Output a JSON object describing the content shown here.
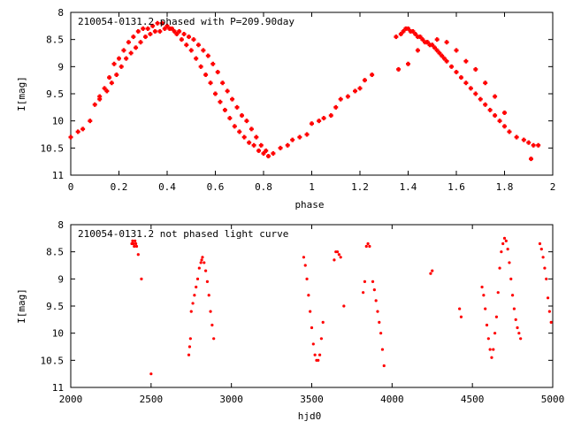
{
  "colors": {
    "marker": "#ff0000",
    "frame": "#000000",
    "background": "#ffffff"
  },
  "chart_data": [
    {
      "type": "scatter",
      "title": "210054-0131.2 phased with P=209.90day",
      "xlabel": "phase",
      "ylabel": "I[mag]",
      "xlim": [
        0,
        2
      ],
      "ylim": [
        11,
        8
      ],
      "y_inverted": true,
      "grid": false,
      "xticks": [
        0,
        0.2,
        0.4,
        0.6,
        0.8,
        1,
        1.2,
        1.4,
        1.6,
        1.8,
        2
      ],
      "xtick_labels": [
        "0",
        "0.2",
        "0.4",
        "0.6",
        "0.8",
        "1",
        "1.2",
        "1.4",
        "1.6",
        "1.8",
        "2"
      ],
      "yticks": [
        8,
        8.5,
        9,
        9.5,
        10,
        10.5,
        11
      ],
      "ytick_labels": [
        "8",
        "8.5",
        "9",
        "9.5",
        "10",
        "10.5",
        "11"
      ],
      "marker": "plus",
      "x": [
        0.0,
        0.03,
        0.05,
        0.08,
        0.1,
        0.12,
        0.14,
        0.16,
        0.18,
        0.2,
        0.22,
        0.24,
        0.26,
        0.28,
        0.3,
        0.32,
        0.34,
        0.36,
        0.38,
        0.4,
        0.42,
        0.44,
        0.46,
        0.48,
        0.5,
        0.52,
        0.54,
        0.56,
        0.58,
        0.6,
        0.62,
        0.64,
        0.66,
        0.68,
        0.7,
        0.72,
        0.74,
        0.76,
        0.78,
        0.8,
        0.82,
        0.84,
        0.87,
        0.9,
        0.92,
        0.95,
        0.98,
        1.0,
        1.03,
        1.05,
        1.08,
        1.1,
        1.12,
        1.15,
        1.18,
        1.2,
        1.22,
        1.25,
        0.12,
        0.15,
        0.17,
        0.19,
        0.21,
        0.23,
        0.25,
        0.27,
        0.29,
        0.31,
        0.33,
        0.35,
        0.37,
        0.39,
        0.41,
        0.43,
        0.45,
        0.47,
        0.49,
        0.51,
        0.53,
        0.55,
        0.57,
        0.59,
        0.61,
        0.63,
        0.65,
        0.67,
        0.69,
        0.71,
        0.73,
        0.75,
        0.77,
        0.79,
        0.81,
        1.35,
        1.37,
        1.38,
        1.39,
        1.4,
        1.41,
        1.42,
        1.43,
        1.44,
        1.45,
        1.46,
        1.47,
        1.48,
        1.49,
        1.5,
        1.51,
        1.52,
        1.53,
        1.54,
        1.55,
        1.56,
        1.58,
        1.6,
        1.62,
        1.64,
        1.66,
        1.68,
        1.7,
        1.72,
        1.74,
        1.76,
        1.78,
        1.8,
        1.82,
        1.85,
        1.88,
        1.9,
        1.92,
        1.94,
        1.36,
        1.4,
        1.44,
        1.48,
        1.52,
        1.56,
        1.6,
        1.64,
        1.68,
        1.72,
        1.76,
        1.8,
        1.91
      ],
      "y": [
        10.3,
        10.2,
        10.15,
        10.0,
        9.7,
        9.55,
        9.4,
        9.2,
        8.95,
        8.85,
        8.7,
        8.55,
        8.45,
        8.35,
        8.3,
        8.3,
        8.25,
        8.2,
        8.2,
        8.25,
        8.3,
        8.4,
        8.5,
        8.6,
        8.7,
        8.85,
        9.0,
        9.15,
        9.3,
        9.5,
        9.65,
        9.8,
        9.95,
        10.1,
        10.2,
        10.3,
        10.4,
        10.45,
        10.55,
        10.6,
        10.65,
        10.6,
        10.5,
        10.45,
        10.35,
        10.3,
        10.25,
        10.05,
        10.0,
        9.95,
        9.9,
        9.75,
        9.6,
        9.55,
        9.45,
        9.4,
        9.25,
        9.15,
        9.6,
        9.45,
        9.3,
        9.15,
        9.0,
        8.85,
        8.75,
        8.65,
        8.55,
        8.45,
        8.4,
        8.35,
        8.35,
        8.3,
        8.3,
        8.35,
        8.35,
        8.4,
        8.45,
        8.5,
        8.6,
        8.7,
        8.8,
        8.95,
        9.1,
        9.3,
        9.45,
        9.6,
        9.75,
        9.9,
        10.0,
        10.15,
        10.3,
        10.45,
        10.55,
        8.45,
        8.4,
        8.35,
        8.3,
        8.3,
        8.35,
        8.35,
        8.4,
        8.45,
        8.45,
        8.5,
        8.55,
        8.55,
        8.6,
        8.6,
        8.65,
        8.7,
        8.75,
        8.8,
        8.85,
        8.9,
        9.0,
        9.1,
        9.2,
        9.3,
        9.4,
        9.5,
        9.6,
        9.7,
        9.8,
        9.9,
        10.0,
        10.1,
        10.2,
        10.3,
        10.35,
        10.4,
        10.45,
        10.45,
        9.05,
        8.95,
        8.7,
        8.55,
        8.5,
        8.55,
        8.7,
        8.9,
        9.05,
        9.3,
        9.55,
        9.85,
        10.7
      ]
    },
    {
      "type": "scatter",
      "title": "210054-0131.2 not phased light curve",
      "xlabel": "hjd0",
      "ylabel": "I[mag]",
      "xlim": [
        2000,
        5000
      ],
      "ylim": [
        11,
        8
      ],
      "y_inverted": true,
      "grid": false,
      "xticks": [
        2000,
        2500,
        3000,
        3500,
        4000,
        4500,
        5000
      ],
      "xtick_labels": [
        "2000",
        "2500",
        "3000",
        "3500",
        "4000",
        "4500",
        "5000"
      ],
      "yticks": [
        8,
        8.5,
        9,
        9.5,
        10,
        10.5,
        11
      ],
      "ytick_labels": [
        "8",
        "8.5",
        "9",
        "9.5",
        "10",
        "10.5",
        "11"
      ],
      "marker": "dot",
      "x": [
        2380,
        2385,
        2390,
        2395,
        2400,
        2405,
        2410,
        2420,
        2440,
        2500,
        2735,
        2740,
        2745,
        2750,
        2760,
        2770,
        2780,
        2790,
        2800,
        2810,
        2815,
        2820,
        2830,
        2840,
        2850,
        2860,
        2870,
        2880,
        2890,
        3450,
        3460,
        3470,
        3480,
        3490,
        3500,
        3510,
        3520,
        3530,
        3540,
        3550,
        3560,
        3570,
        3640,
        3650,
        3660,
        3670,
        3680,
        3700,
        3820,
        3830,
        3840,
        3850,
        3860,
        3880,
        3890,
        3900,
        3910,
        3920,
        3930,
        3940,
        3950,
        4240,
        4250,
        4420,
        4430,
        4560,
        4570,
        4580,
        4590,
        4600,
        4610,
        4620,
        4630,
        4640,
        4650,
        4660,
        4670,
        4680,
        4690,
        4700,
        4710,
        4720,
        4730,
        4740,
        4750,
        4760,
        4770,
        4780,
        4790,
        4800,
        4920,
        4930,
        4940,
        4950,
        4960,
        4970,
        4980,
        4990
      ],
      "y": [
        8.35,
        8.3,
        8.35,
        8.4,
        8.3,
        8.35,
        8.4,
        8.55,
        9.0,
        10.75,
        10.4,
        10.25,
        10.1,
        9.6,
        9.45,
        9.3,
        9.15,
        9.0,
        8.8,
        8.7,
        8.65,
        8.6,
        8.7,
        8.85,
        9.05,
        9.3,
        9.6,
        9.85,
        10.1,
        8.6,
        8.75,
        9.0,
        9.3,
        9.6,
        9.9,
        10.2,
        10.4,
        10.5,
        10.5,
        10.4,
        10.1,
        9.8,
        8.65,
        8.5,
        8.5,
        8.55,
        8.6,
        9.5,
        9.25,
        9.05,
        8.4,
        8.35,
        8.4,
        9.05,
        9.2,
        9.4,
        9.6,
        9.8,
        10.0,
        10.3,
        10.6,
        8.9,
        8.85,
        9.55,
        9.7,
        9.15,
        9.3,
        9.55,
        9.85,
        10.1,
        10.3,
        10.45,
        10.3,
        10.0,
        9.7,
        9.25,
        8.8,
        8.5,
        8.35,
        8.25,
        8.3,
        8.45,
        8.7,
        9.0,
        9.3,
        9.55,
        9.75,
        9.9,
        10.0,
        10.1,
        8.35,
        8.45,
        8.6,
        8.8,
        9.0,
        9.35,
        9.6,
        9.8
      ]
    }
  ]
}
